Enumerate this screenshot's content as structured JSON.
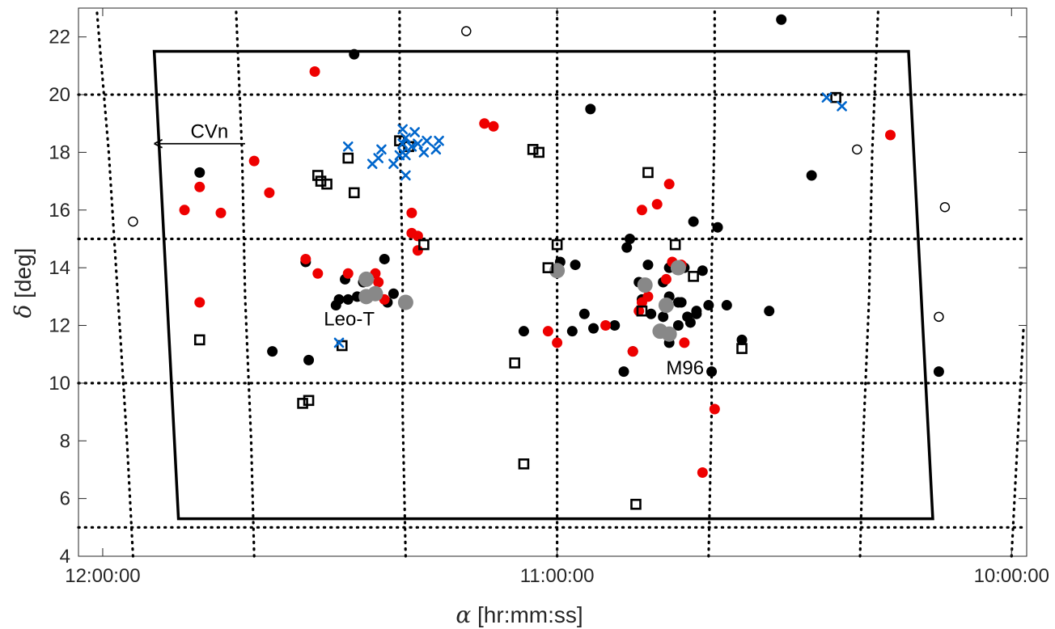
{
  "chart_data": {
    "type": "scatter",
    "xlabel": "[hr:mm:ss]",
    "xlabel_symbol": "α",
    "ylabel": "[deg]",
    "ylabel_symbol": "δ",
    "x_unit": "degrees of right ascension (axis reversed, shown as hr:mm:ss)",
    "xlim": [
      180.8,
      149.5
    ],
    "ylim": [
      4,
      23
    ],
    "x_ticks": [
      {
        "value": 180,
        "label": "12:00:00"
      },
      {
        "value": 165,
        "label": "11:00:00"
      },
      {
        "value": 150,
        "label": "10:00:00"
      }
    ],
    "y_ticks": [
      4,
      6,
      8,
      10,
      12,
      14,
      16,
      18,
      20,
      22
    ],
    "grid": "dotted RA/Dec coordinate grid",
    "dec_grid": [
      5,
      10,
      15,
      20
    ],
    "ra_grid": [
      {
        "points": [
          [
            179.0,
            4
          ],
          [
            179.2,
            8
          ],
          [
            179.5,
            13
          ],
          [
            179.8,
            18
          ],
          [
            180.2,
            23
          ]
        ]
      },
      {
        "points": [
          [
            175.0,
            4
          ],
          [
            175.1,
            8
          ],
          [
            175.3,
            13
          ],
          [
            175.4,
            18
          ],
          [
            175.6,
            23
          ]
        ]
      },
      {
        "points": [
          [
            170.0,
            4
          ],
          [
            170.1,
            9
          ],
          [
            170.1,
            14
          ],
          [
            170.2,
            19
          ],
          [
            170.2,
            23
          ]
        ]
      },
      {
        "points": [
          [
            165.0,
            4
          ],
          [
            165.0,
            23
          ]
        ]
      },
      {
        "points": [
          [
            160.0,
            4
          ],
          [
            159.9,
            9
          ],
          [
            159.9,
            14
          ],
          [
            159.8,
            19
          ],
          [
            159.8,
            23
          ]
        ]
      },
      {
        "points": [
          [
            155.0,
            4
          ],
          [
            154.9,
            8
          ],
          [
            154.7,
            13
          ],
          [
            154.6,
            18
          ],
          [
            154.4,
            23
          ]
        ]
      },
      {
        "points": [
          [
            150.0,
            4
          ],
          [
            149.8,
            8
          ],
          [
            149.6,
            12
          ]
        ]
      }
    ],
    "footprint": [
      [
        178.3,
        21.5
      ],
      [
        153.4,
        21.5
      ],
      [
        152.6,
        5.3
      ],
      [
        177.5,
        5.3
      ]
    ],
    "annotations": [
      {
        "text": "CVn",
        "x": 177.1,
        "y": 18.5
      },
      {
        "text": "Leo-T",
        "x": 172.7,
        "y": 12.0
      },
      {
        "text": "M96",
        "x": 161.4,
        "y": 10.3
      }
    ],
    "arrow": {
      "from": [
        175.3,
        18.3
      ],
      "to": [
        178.3,
        18.3
      ]
    },
    "series": [
      {
        "marker": "filled-circle",
        "color": "#000000",
        "points": [
          [
            176.8,
            17.3
          ],
          [
            173.3,
            14.2
          ],
          [
            172.0,
            13.6
          ],
          [
            172.2,
            12.9
          ],
          [
            172.3,
            12.7
          ],
          [
            171.9,
            12.9
          ],
          [
            171.6,
            13.0
          ],
          [
            171.4,
            13.5
          ],
          [
            170.7,
            14.3
          ],
          [
            170.4,
            13.1
          ],
          [
            170.6,
            12.8
          ],
          [
            171.7,
            21.4
          ],
          [
            163.9,
            19.5
          ],
          [
            162.6,
            15.0
          ],
          [
            162.7,
            14.7
          ],
          [
            162.0,
            14.1
          ],
          [
            161.3,
            14.0
          ],
          [
            160.8,
            14.0
          ],
          [
            160.2,
            13.9
          ],
          [
            162.3,
            13.5
          ],
          [
            162.2,
            12.9
          ],
          [
            161.9,
            12.4
          ],
          [
            161.5,
            12.3
          ],
          [
            161.0,
            12.0
          ],
          [
            160.7,
            12.3
          ],
          [
            160.4,
            12.5
          ],
          [
            160.0,
            12.7
          ],
          [
            160.6,
            12.1
          ],
          [
            162.5,
            11.1
          ],
          [
            162.8,
            10.4
          ],
          [
            161.3,
            11.4
          ],
          [
            161.0,
            12.8
          ],
          [
            161.3,
            13.0
          ],
          [
            164.5,
            11.8
          ],
          [
            164.1,
            12.4
          ],
          [
            163.8,
            11.9
          ],
          [
            164.9,
            14.2
          ],
          [
            164.4,
            14.1
          ],
          [
            165.0,
            13.9
          ],
          [
            166.1,
            11.8
          ],
          [
            159.9,
            10.4
          ],
          [
            159.7,
            15.4
          ],
          [
            160.5,
            15.6
          ],
          [
            158.0,
            12.5
          ],
          [
            158.9,
            11.5
          ],
          [
            159.4,
            12.7
          ],
          [
            157.6,
            22.6
          ],
          [
            156.6,
            17.2
          ],
          [
            152.4,
            10.4
          ],
          [
            174.4,
            11.1
          ],
          [
            173.2,
            10.8
          ],
          [
            161.5,
            13.5
          ],
          [
            160.9,
            12.8
          ],
          [
            160.4,
            12.4
          ],
          [
            163.1,
            12.0
          ]
        ]
      },
      {
        "marker": "filled-circle",
        "color": "#ee0000",
        "points": [
          [
            177.3,
            16.0
          ],
          [
            176.8,
            16.8
          ],
          [
            176.1,
            15.9
          ],
          [
            175.0,
            17.7
          ],
          [
            174.5,
            16.6
          ],
          [
            176.8,
            12.8
          ],
          [
            173.3,
            14.3
          ],
          [
            172.9,
            13.8
          ],
          [
            171.9,
            13.8
          ],
          [
            171.0,
            13.8
          ],
          [
            170.9,
            13.5
          ],
          [
            170.7,
            12.9
          ],
          [
            169.8,
            15.9
          ],
          [
            169.8,
            15.2
          ],
          [
            169.6,
            15.1
          ],
          [
            169.6,
            14.6
          ],
          [
            173.0,
            20.8
          ],
          [
            167.4,
            19.0
          ],
          [
            167.1,
            18.9
          ],
          [
            165.3,
            11.8
          ],
          [
            165.0,
            11.4
          ],
          [
            163.4,
            12.0
          ],
          [
            162.5,
            11.1
          ],
          [
            162.0,
            13.0
          ],
          [
            162.2,
            12.8
          ],
          [
            162.3,
            12.5
          ],
          [
            161.7,
            16.2
          ],
          [
            162.2,
            16.0
          ],
          [
            161.3,
            16.9
          ],
          [
            161.2,
            14.2
          ],
          [
            160.9,
            14.1
          ],
          [
            161.4,
            13.6
          ],
          [
            160.8,
            11.4
          ],
          [
            160.2,
            6.9
          ],
          [
            159.8,
            9.1
          ],
          [
            154.0,
            18.6
          ]
        ]
      },
      {
        "marker": "filled-circle",
        "color": "#888888",
        "size": "large",
        "points": [
          [
            171.3,
            13.6
          ],
          [
            171.3,
            13.0
          ],
          [
            171.0,
            13.1
          ],
          [
            170.0,
            12.8
          ],
          [
            165.0,
            13.9
          ],
          [
            162.1,
            13.4
          ],
          [
            161.6,
            11.8
          ],
          [
            161.3,
            11.7
          ],
          [
            161.0,
            14.0
          ],
          [
            161.4,
            12.7
          ]
        ]
      },
      {
        "marker": "open-square",
        "color": "#000000",
        "points": [
          [
            172.9,
            17.2
          ],
          [
            172.8,
            17.0
          ],
          [
            172.6,
            16.9
          ],
          [
            171.9,
            17.8
          ],
          [
            171.7,
            16.6
          ],
          [
            169.9,
            18.2
          ],
          [
            170.2,
            18.4
          ],
          [
            169.4,
            14.8
          ],
          [
            166.4,
            10.7
          ],
          [
            165.8,
            18.1
          ],
          [
            165.6,
            18.0
          ],
          [
            165.0,
            14.8
          ],
          [
            165.3,
            14.0
          ],
          [
            162.2,
            12.5
          ],
          [
            162.0,
            17.3
          ],
          [
            161.1,
            14.8
          ],
          [
            160.5,
            13.7
          ],
          [
            158.9,
            11.2
          ],
          [
            155.8,
            19.9
          ],
          [
            176.8,
            11.5
          ],
          [
            173.4,
            9.3
          ],
          [
            173.2,
            9.4
          ],
          [
            172.1,
            11.3
          ],
          [
            166.1,
            7.2
          ],
          [
            162.4,
            5.8
          ]
        ]
      },
      {
        "marker": "open-circle",
        "color": "#000000",
        "points": [
          [
            168.0,
            22.2
          ],
          [
            155.1,
            18.1
          ],
          [
            179.0,
            15.6
          ],
          [
            152.2,
            16.1
          ],
          [
            152.4,
            12.3
          ]
        ]
      },
      {
        "marker": "x",
        "color": "#0066cc",
        "points": [
          [
            171.9,
            18.2
          ],
          [
            171.1,
            17.6
          ],
          [
            170.9,
            17.8
          ],
          [
            170.8,
            18.1
          ],
          [
            170.4,
            17.6
          ],
          [
            170.1,
            18.3
          ],
          [
            170.1,
            18.8
          ],
          [
            170.0,
            18.5
          ],
          [
            169.7,
            18.7
          ],
          [
            169.6,
            18.3
          ],
          [
            169.3,
            18.4
          ],
          [
            169.0,
            18.1
          ],
          [
            168.9,
            18.4
          ],
          [
            169.4,
            18.0
          ],
          [
            169.8,
            18.2
          ],
          [
            170.0,
            17.9
          ],
          [
            170.2,
            17.9
          ],
          [
            170.1,
            18.0
          ],
          [
            170.0,
            17.2
          ],
          [
            156.1,
            19.9
          ],
          [
            155.6,
            19.6
          ],
          [
            172.2,
            11.4
          ]
        ]
      }
    ]
  }
}
